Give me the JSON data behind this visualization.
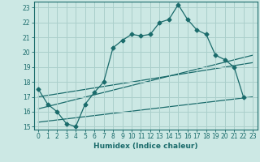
{
  "xlabel": "Humidex (Indice chaleur)",
  "background_color": "#cce8e4",
  "grid_color": "#aacfcb",
  "line_color": "#1a6b6b",
  "xlim": [
    -0.5,
    23.5
  ],
  "ylim": [
    14.8,
    23.4
  ],
  "xticks": [
    0,
    1,
    2,
    3,
    4,
    5,
    6,
    7,
    8,
    9,
    10,
    11,
    12,
    13,
    14,
    15,
    16,
    17,
    18,
    19,
    20,
    21,
    22,
    23
  ],
  "yticks": [
    15,
    16,
    17,
    18,
    19,
    20,
    21,
    22,
    23
  ],
  "main_x": [
    0,
    1,
    2,
    3,
    4,
    5,
    6,
    7,
    8,
    9,
    10,
    11,
    12,
    13,
    14,
    15,
    16,
    17,
    18,
    19,
    20,
    21,
    22
  ],
  "main_y": [
    17.5,
    16.5,
    16.0,
    15.2,
    15.0,
    16.5,
    17.3,
    18.0,
    20.3,
    20.8,
    21.2,
    21.1,
    21.2,
    22.0,
    22.2,
    23.2,
    22.2,
    21.5,
    21.2,
    19.8,
    19.5,
    19.0,
    17.0
  ],
  "line2_x": [
    0,
    23
  ],
  "line2_y": [
    15.3,
    17.0
  ],
  "line3_x": [
    0,
    23
  ],
  "line3_y": [
    16.2,
    19.8
  ],
  "line4_x": [
    0,
    23
  ],
  "line4_y": [
    17.0,
    19.3
  ],
  "marker_size": 2.5,
  "linewidth": 0.9,
  "axis_fontsize": 6.5,
  "tick_fontsize": 5.5
}
